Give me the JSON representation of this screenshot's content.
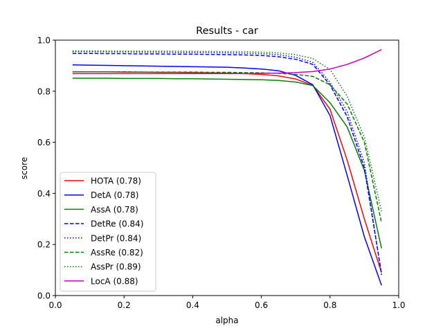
{
  "chart_data": {
    "type": "line",
    "title": "Results - car",
    "xlabel": "alpha",
    "ylabel": "score",
    "xlim": [
      0.0,
      1.0
    ],
    "ylim": [
      0.0,
      1.0
    ],
    "xticks": [
      "0.0",
      "0.2",
      "0.4",
      "0.6",
      "0.8",
      "1.0"
    ],
    "yticks": [
      "0.0",
      "0.2",
      "0.4",
      "0.6",
      "0.8",
      "1.0"
    ],
    "grid": false,
    "legend_position": "lower-left",
    "x": [
      0.05,
      0.1,
      0.15,
      0.2,
      0.25,
      0.3,
      0.35,
      0.4,
      0.45,
      0.5,
      0.55,
      0.6,
      0.65,
      0.7,
      0.75,
      0.8,
      0.85,
      0.9,
      0.95
    ],
    "series": [
      {
        "name": "HOTA (0.78)",
        "color": "#ff0000",
        "dash": "solid",
        "values": [
          0.876,
          0.876,
          0.876,
          0.875,
          0.875,
          0.874,
          0.874,
          0.873,
          0.872,
          0.871,
          0.869,
          0.866,
          0.86,
          0.848,
          0.822,
          0.73,
          0.53,
          0.3,
          0.09
        ]
      },
      {
        "name": "DetA (0.78)",
        "color": "#0000ff",
        "dash": "solid",
        "values": [
          0.903,
          0.902,
          0.901,
          0.9,
          0.899,
          0.898,
          0.897,
          0.896,
          0.895,
          0.894,
          0.891,
          0.887,
          0.88,
          0.862,
          0.825,
          0.705,
          0.47,
          0.23,
          0.04
        ]
      },
      {
        "name": "AssA (0.78)",
        "color": "#008000",
        "dash": "solid",
        "values": [
          0.851,
          0.851,
          0.851,
          0.85,
          0.85,
          0.85,
          0.849,
          0.849,
          0.848,
          0.847,
          0.846,
          0.845,
          0.842,
          0.836,
          0.822,
          0.755,
          0.66,
          0.49,
          0.185
        ]
      },
      {
        "name": "DetRe (0.84)",
        "color": "#0000ff",
        "dash": "dashed",
        "values": [
          0.948,
          0.948,
          0.947,
          0.947,
          0.946,
          0.946,
          0.945,
          0.945,
          0.944,
          0.943,
          0.942,
          0.94,
          0.935,
          0.925,
          0.905,
          0.825,
          0.7,
          0.5,
          0.085
        ]
      },
      {
        "name": "DetPr (0.84)",
        "color": "#0000ff",
        "dash": "dotted",
        "values": [
          0.955,
          0.955,
          0.954,
          0.954,
          0.953,
          0.953,
          0.952,
          0.952,
          0.951,
          0.95,
          0.949,
          0.947,
          0.943,
          0.933,
          0.913,
          0.835,
          0.72,
          0.52,
          0.08
        ]
      },
      {
        "name": "AssRe (0.82)",
        "color": "#008000",
        "dash": "dashed",
        "values": [
          0.876,
          0.876,
          0.876,
          0.876,
          0.875,
          0.875,
          0.875,
          0.875,
          0.874,
          0.874,
          0.873,
          0.872,
          0.87,
          0.866,
          0.858,
          0.825,
          0.75,
          0.6,
          0.285
        ]
      },
      {
        "name": "AssPr (0.89)",
        "color": "#008000",
        "dash": "dotted",
        "values": [
          0.958,
          0.958,
          0.958,
          0.957,
          0.957,
          0.957,
          0.957,
          0.956,
          0.956,
          0.955,
          0.955,
          0.953,
          0.95,
          0.943,
          0.928,
          0.885,
          0.78,
          0.62,
          0.33
        ]
      },
      {
        "name": "LocA (0.88)",
        "color": "#bf00bf",
        "dash": "solid",
        "values": [
          0.869,
          0.869,
          0.869,
          0.869,
          0.869,
          0.869,
          0.869,
          0.869,
          0.869,
          0.869,
          0.869,
          0.87,
          0.871,
          0.873,
          0.877,
          0.887,
          0.905,
          0.93,
          0.963
        ]
      }
    ]
  }
}
